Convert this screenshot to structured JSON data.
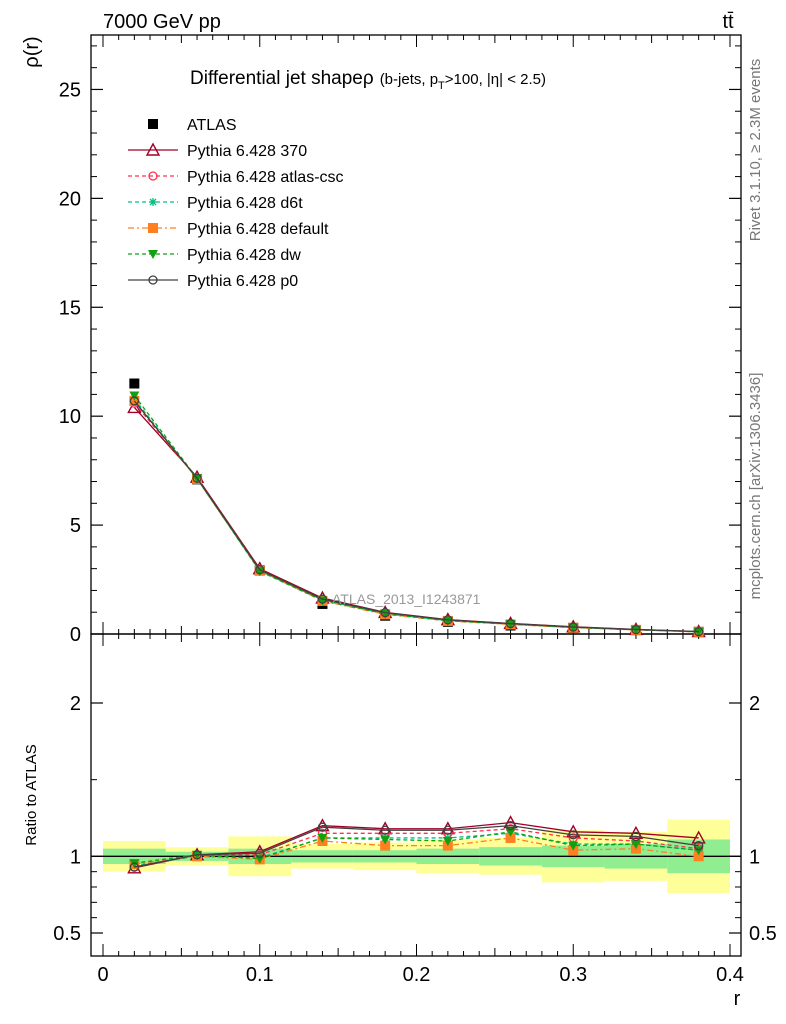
{
  "header": {
    "energy_label": "7000 GeV pp",
    "process_label": "tt̄"
  },
  "side_labels": {
    "rivet": "Rivet 3.1.10, ≥ 2.3M events",
    "mcplots": "mcplots.cern.ch [arXiv:1306.3436]"
  },
  "analysis_id": "ATLAS_2013_I1243871",
  "chart_data": [
    {
      "type": "line",
      "title": "Differential jet shape",
      "title_symbol": "ρ",
      "subtitle": {
        "prefix": "(b-jets, p",
        "sub": "T",
        "suffix": ">100, |η| < 2.5)"
      },
      "ylabel": "ρ(r)",
      "xlabel": "r",
      "xlim": [
        0,
        0.4
      ],
      "ylim": [
        0,
        27.5
      ],
      "y_ticks": [
        0,
        5,
        10,
        15,
        20,
        25
      ],
      "y_tick_labels": [
        "0",
        "5",
        "10",
        "15",
        "20",
        "25"
      ],
      "x": [
        0.02,
        0.06,
        0.1,
        0.14,
        0.18,
        0.22,
        0.26,
        0.3,
        0.34,
        0.38
      ],
      "legend_position": "top-left",
      "series": [
        {
          "name": "ATLAS",
          "color": "#000000",
          "style": "solid",
          "marker": "square-filled",
          "values": [
            11.5,
            7.1,
            2.92,
            1.38,
            0.84,
            0.56,
            0.39,
            0.28,
            0.18,
            0.1
          ]
        },
        {
          "name": "Pythia 6.428 370",
          "color": "#a00028",
          "style": "solid",
          "marker": "triangle-open",
          "values": [
            10.4,
            7.2,
            3.0,
            1.65,
            0.99,
            0.66,
            0.485,
            0.33,
            0.21,
            0.113
          ]
        },
        {
          "name": "Pythia 6.428 atlas-csc",
          "color": "#ff3050",
          "style": "dashed",
          "marker": "circle-open",
          "values": [
            10.6,
            7.15,
            2.95,
            1.58,
            0.96,
            0.64,
            0.46,
            0.31,
            0.198,
            0.105
          ]
        },
        {
          "name": "Pythia 6.428 d6t",
          "color": "#00c080",
          "style": "dashed",
          "marker": "star",
          "values": [
            10.8,
            7.12,
            2.9,
            1.56,
            0.93,
            0.62,
            0.45,
            0.3,
            0.195,
            0.104
          ]
        },
        {
          "name": "Pythia 6.428 default",
          "color": "#ff8020",
          "style": "dashdot",
          "marker": "square-filled",
          "values": [
            10.7,
            7.12,
            2.9,
            1.52,
            0.9,
            0.6,
            0.44,
            0.29,
            0.19,
            0.1
          ]
        },
        {
          "name": "Pythia 6.428 dw",
          "color": "#10a010",
          "style": "dashed",
          "marker": "triangle-down-filled",
          "values": [
            10.95,
            7.15,
            2.88,
            1.54,
            0.93,
            0.61,
            0.455,
            0.3,
            0.195,
            0.104
          ]
        },
        {
          "name": "Pythia 6.428 p0",
          "color": "#404040",
          "style": "solid",
          "marker": "circle-open",
          "values": [
            10.7,
            7.15,
            2.95,
            1.6,
            0.98,
            0.65,
            0.475,
            0.32,
            0.203,
            0.108
          ]
        }
      ]
    },
    {
      "type": "line",
      "ylabel": "Ratio to ATLAS",
      "xlabel": "r",
      "xlim": [
        0,
        0.4
      ],
      "ylim": [
        0.35,
        2.45
      ],
      "y_ticks": [
        0.5,
        1,
        2
      ],
      "y_tick_labels": [
        "0.5",
        "1",
        "2"
      ],
      "x_ticks": [
        0,
        0.1,
        0.2,
        0.3,
        0.4
      ],
      "x_tick_labels": [
        "0",
        "0.1",
        "0.2",
        "0.3",
        "0.4"
      ],
      "x": [
        0.02,
        0.06,
        0.1,
        0.14,
        0.18,
        0.22,
        0.26,
        0.3,
        0.34,
        0.38
      ],
      "bin_edges": [
        0,
        0.04,
        0.08,
        0.12,
        0.16,
        0.2,
        0.24,
        0.28,
        0.32,
        0.36,
        0.4
      ],
      "band_stat": {
        "color": "#90ee90",
        "low": [
          0.95,
          0.97,
          0.95,
          0.96,
          0.96,
          0.95,
          0.94,
          0.93,
          0.92,
          0.89
        ],
        "high": [
          1.05,
          1.03,
          1.05,
          1.04,
          1.04,
          1.05,
          1.06,
          1.07,
          1.08,
          1.11
        ]
      },
      "band_total": {
        "color": "#ffff99",
        "low": [
          0.9,
          0.94,
          0.87,
          0.92,
          0.91,
          0.89,
          0.88,
          0.83,
          0.84,
          0.76
        ],
        "high": [
          1.1,
          1.06,
          1.13,
          1.08,
          1.09,
          1.11,
          1.12,
          1.17,
          1.16,
          1.24
        ]
      },
      "series": [
        {
          "name": "Pythia 6.428 370",
          "color": "#a00028",
          "style": "solid",
          "marker": "triangle-open",
          "values": [
            0.925,
            1.01,
            1.03,
            1.2,
            1.18,
            1.18,
            1.22,
            1.16,
            1.15,
            1.12
          ]
        },
        {
          "name": "Pythia 6.428 atlas-csc",
          "color": "#ff3050",
          "style": "dashed",
          "marker": "circle-open",
          "values": [
            0.93,
            1.005,
            1.01,
            1.15,
            1.15,
            1.15,
            1.18,
            1.12,
            1.1,
            1.05
          ]
        },
        {
          "name": "Pythia 6.428 d6t",
          "color": "#00c080",
          "style": "dashed",
          "marker": "star",
          "values": [
            0.94,
            1.0,
            0.99,
            1.12,
            1.12,
            1.12,
            1.15,
            1.08,
            1.08,
            1.04
          ]
        },
        {
          "name": "Pythia 6.428 default",
          "color": "#ff8020",
          "style": "dashdot",
          "marker": "square-filled",
          "values": [
            0.95,
            1.0,
            0.98,
            1.1,
            1.07,
            1.07,
            1.12,
            1.04,
            1.05,
            1.0
          ]
        },
        {
          "name": "Pythia 6.428 dw",
          "color": "#10a010",
          "style": "dashed",
          "marker": "triangle-down-filled",
          "values": [
            0.955,
            1.01,
            0.985,
            1.12,
            1.11,
            1.1,
            1.16,
            1.07,
            1.08,
            1.04
          ]
        },
        {
          "name": "Pythia 6.428 p0",
          "color": "#404040",
          "style": "solid",
          "marker": "circle-open",
          "values": [
            0.93,
            1.01,
            1.02,
            1.19,
            1.17,
            1.17,
            1.2,
            1.14,
            1.13,
            1.07
          ]
        }
      ]
    }
  ]
}
